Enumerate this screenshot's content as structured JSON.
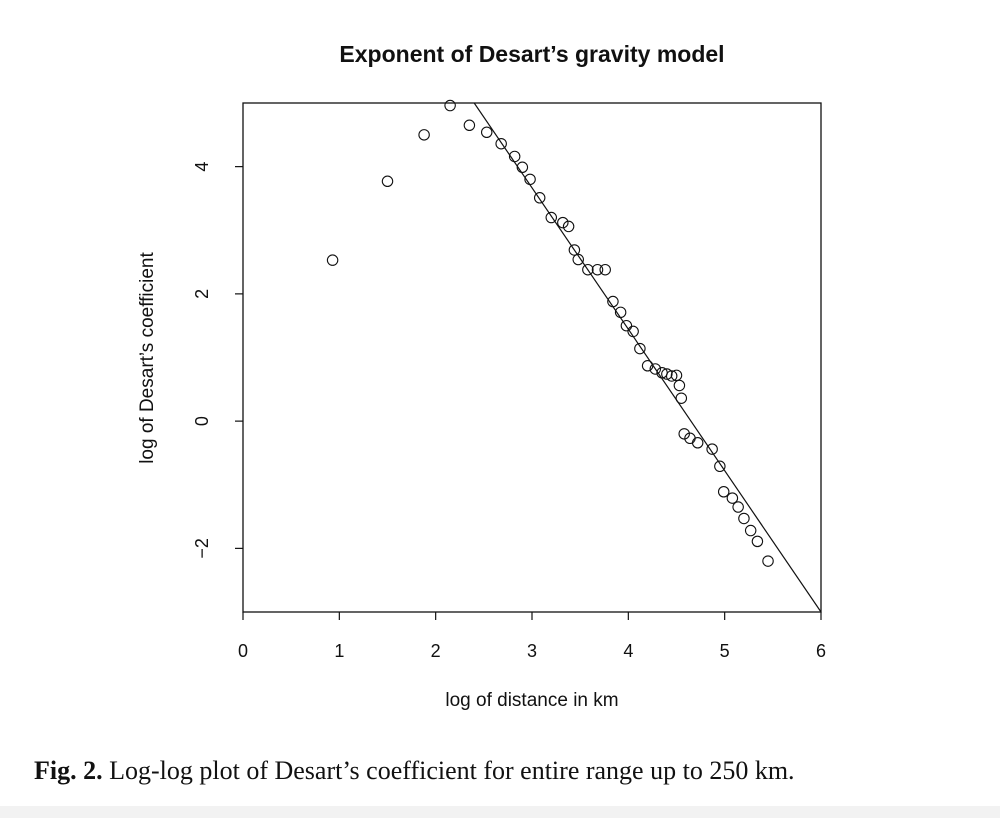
{
  "caption": {
    "label": "Fig. 2.",
    "text": "Log-log plot of Desart’s coefficient for entire range up to 250 km."
  },
  "chart_data": {
    "type": "scatter",
    "title": "Exponent of Desart’s gravity model",
    "xlabel": "log of distance in km",
    "ylabel": "log of Desart’s coefficient",
    "xlim": [
      0,
      6
    ],
    "ylim": [
      -3,
      5
    ],
    "xticks": [
      0,
      1,
      2,
      3,
      4,
      5,
      6
    ],
    "yticks": [
      -2,
      0,
      2,
      4
    ],
    "ytick_labels": [
      "−2",
      "0",
      "2",
      "4"
    ],
    "grid": false,
    "legend": "none",
    "points": [
      [
        0.93,
        2.53
      ],
      [
        1.5,
        3.77
      ],
      [
        1.88,
        4.5
      ],
      [
        2.15,
        4.96
      ],
      [
        2.35,
        4.65
      ],
      [
        2.53,
        4.54
      ],
      [
        2.68,
        4.36
      ],
      [
        2.82,
        4.16
      ],
      [
        2.9,
        3.99
      ],
      [
        2.98,
        3.8
      ],
      [
        3.08,
        3.51
      ],
      [
        3.2,
        3.2
      ],
      [
        3.32,
        3.12
      ],
      [
        3.38,
        3.06
      ],
      [
        3.44,
        2.69
      ],
      [
        3.48,
        2.54
      ],
      [
        3.58,
        2.38
      ],
      [
        3.68,
        2.38
      ],
      [
        3.76,
        2.38
      ],
      [
        3.84,
        1.88
      ],
      [
        3.92,
        1.71
      ],
      [
        3.98,
        1.5
      ],
      [
        4.05,
        1.41
      ],
      [
        4.12,
        1.14
      ],
      [
        4.2,
        0.87
      ],
      [
        4.28,
        0.82
      ],
      [
        4.35,
        0.76
      ],
      [
        4.4,
        0.74
      ],
      [
        4.45,
        0.71
      ],
      [
        4.5,
        0.72
      ],
      [
        4.53,
        0.56
      ],
      [
        4.55,
        0.36
      ],
      [
        4.58,
        -0.2
      ],
      [
        4.64,
        -0.27
      ],
      [
        4.72,
        -0.34
      ],
      [
        4.87,
        -0.44
      ],
      [
        4.95,
        -0.71
      ],
      [
        4.99,
        -1.11
      ],
      [
        5.08,
        -1.21
      ],
      [
        5.14,
        -1.35
      ],
      [
        5.2,
        -1.53
      ],
      [
        5.27,
        -1.72
      ],
      [
        5.34,
        -1.89
      ],
      [
        5.45,
        -2.2
      ]
    ],
    "fit_line": {
      "x": [
        2.4,
        6.0
      ],
      "y": [
        5.0,
        -3.0
      ]
    }
  }
}
